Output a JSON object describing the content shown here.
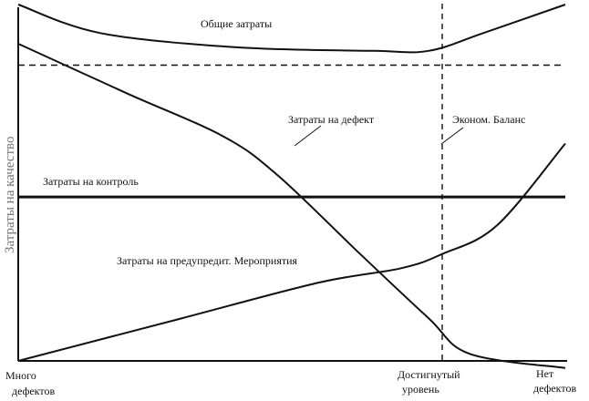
{
  "chart_data": {
    "type": "line",
    "title": "",
    "ylabel": "Затраты на качество",
    "x_labels": [
      {
        "id": "many",
        "lines": [
          "Много",
          "дефектов"
        ]
      },
      {
        "id": "achieved",
        "lines": [
          "Достигнутый",
          "уровень"
        ]
      },
      {
        "id": "none",
        "lines": [
          "Нет",
          "дефектов"
        ]
      }
    ],
    "curve_labels": {
      "total": "Общие затраты",
      "defect": "Затраты на дефект",
      "balance": "Эконом. Баланс",
      "control": "Затраты на контроль",
      "prevent": "Затраты на предупредит. Мероприятия"
    },
    "series": [
      {
        "key": "total",
        "values": [
          [
            0,
            100
          ],
          [
            3,
            92
          ],
          [
            8,
            88
          ],
          [
            13,
            87
          ],
          [
            15,
            87
          ],
          [
            17,
            92
          ],
          [
            20,
            100
          ]
        ]
      },
      {
        "key": "defect",
        "values": [
          [
            0,
            89
          ],
          [
            4,
            75
          ],
          [
            7.5,
            63
          ],
          [
            9.5,
            52
          ],
          [
            12.5,
            30
          ],
          [
            15,
            12
          ],
          [
            16.5,
            2
          ],
          [
            20,
            -2
          ]
        ]
      },
      {
        "key": "control",
        "values": [
          [
            0,
            46
          ],
          [
            20,
            46
          ]
        ]
      },
      {
        "key": "prevent",
        "values": [
          [
            0,
            0
          ],
          [
            6,
            12
          ],
          [
            11,
            22
          ],
          [
            14,
            26
          ],
          [
            15.5,
            30
          ],
          [
            17.5,
            38
          ],
          [
            20,
            61
          ]
        ]
      },
      {
        "key": "reference",
        "values": [
          [
            0,
            83
          ],
          [
            20,
            83
          ]
        ]
      }
    ],
    "x_marker": 15.5
  }
}
